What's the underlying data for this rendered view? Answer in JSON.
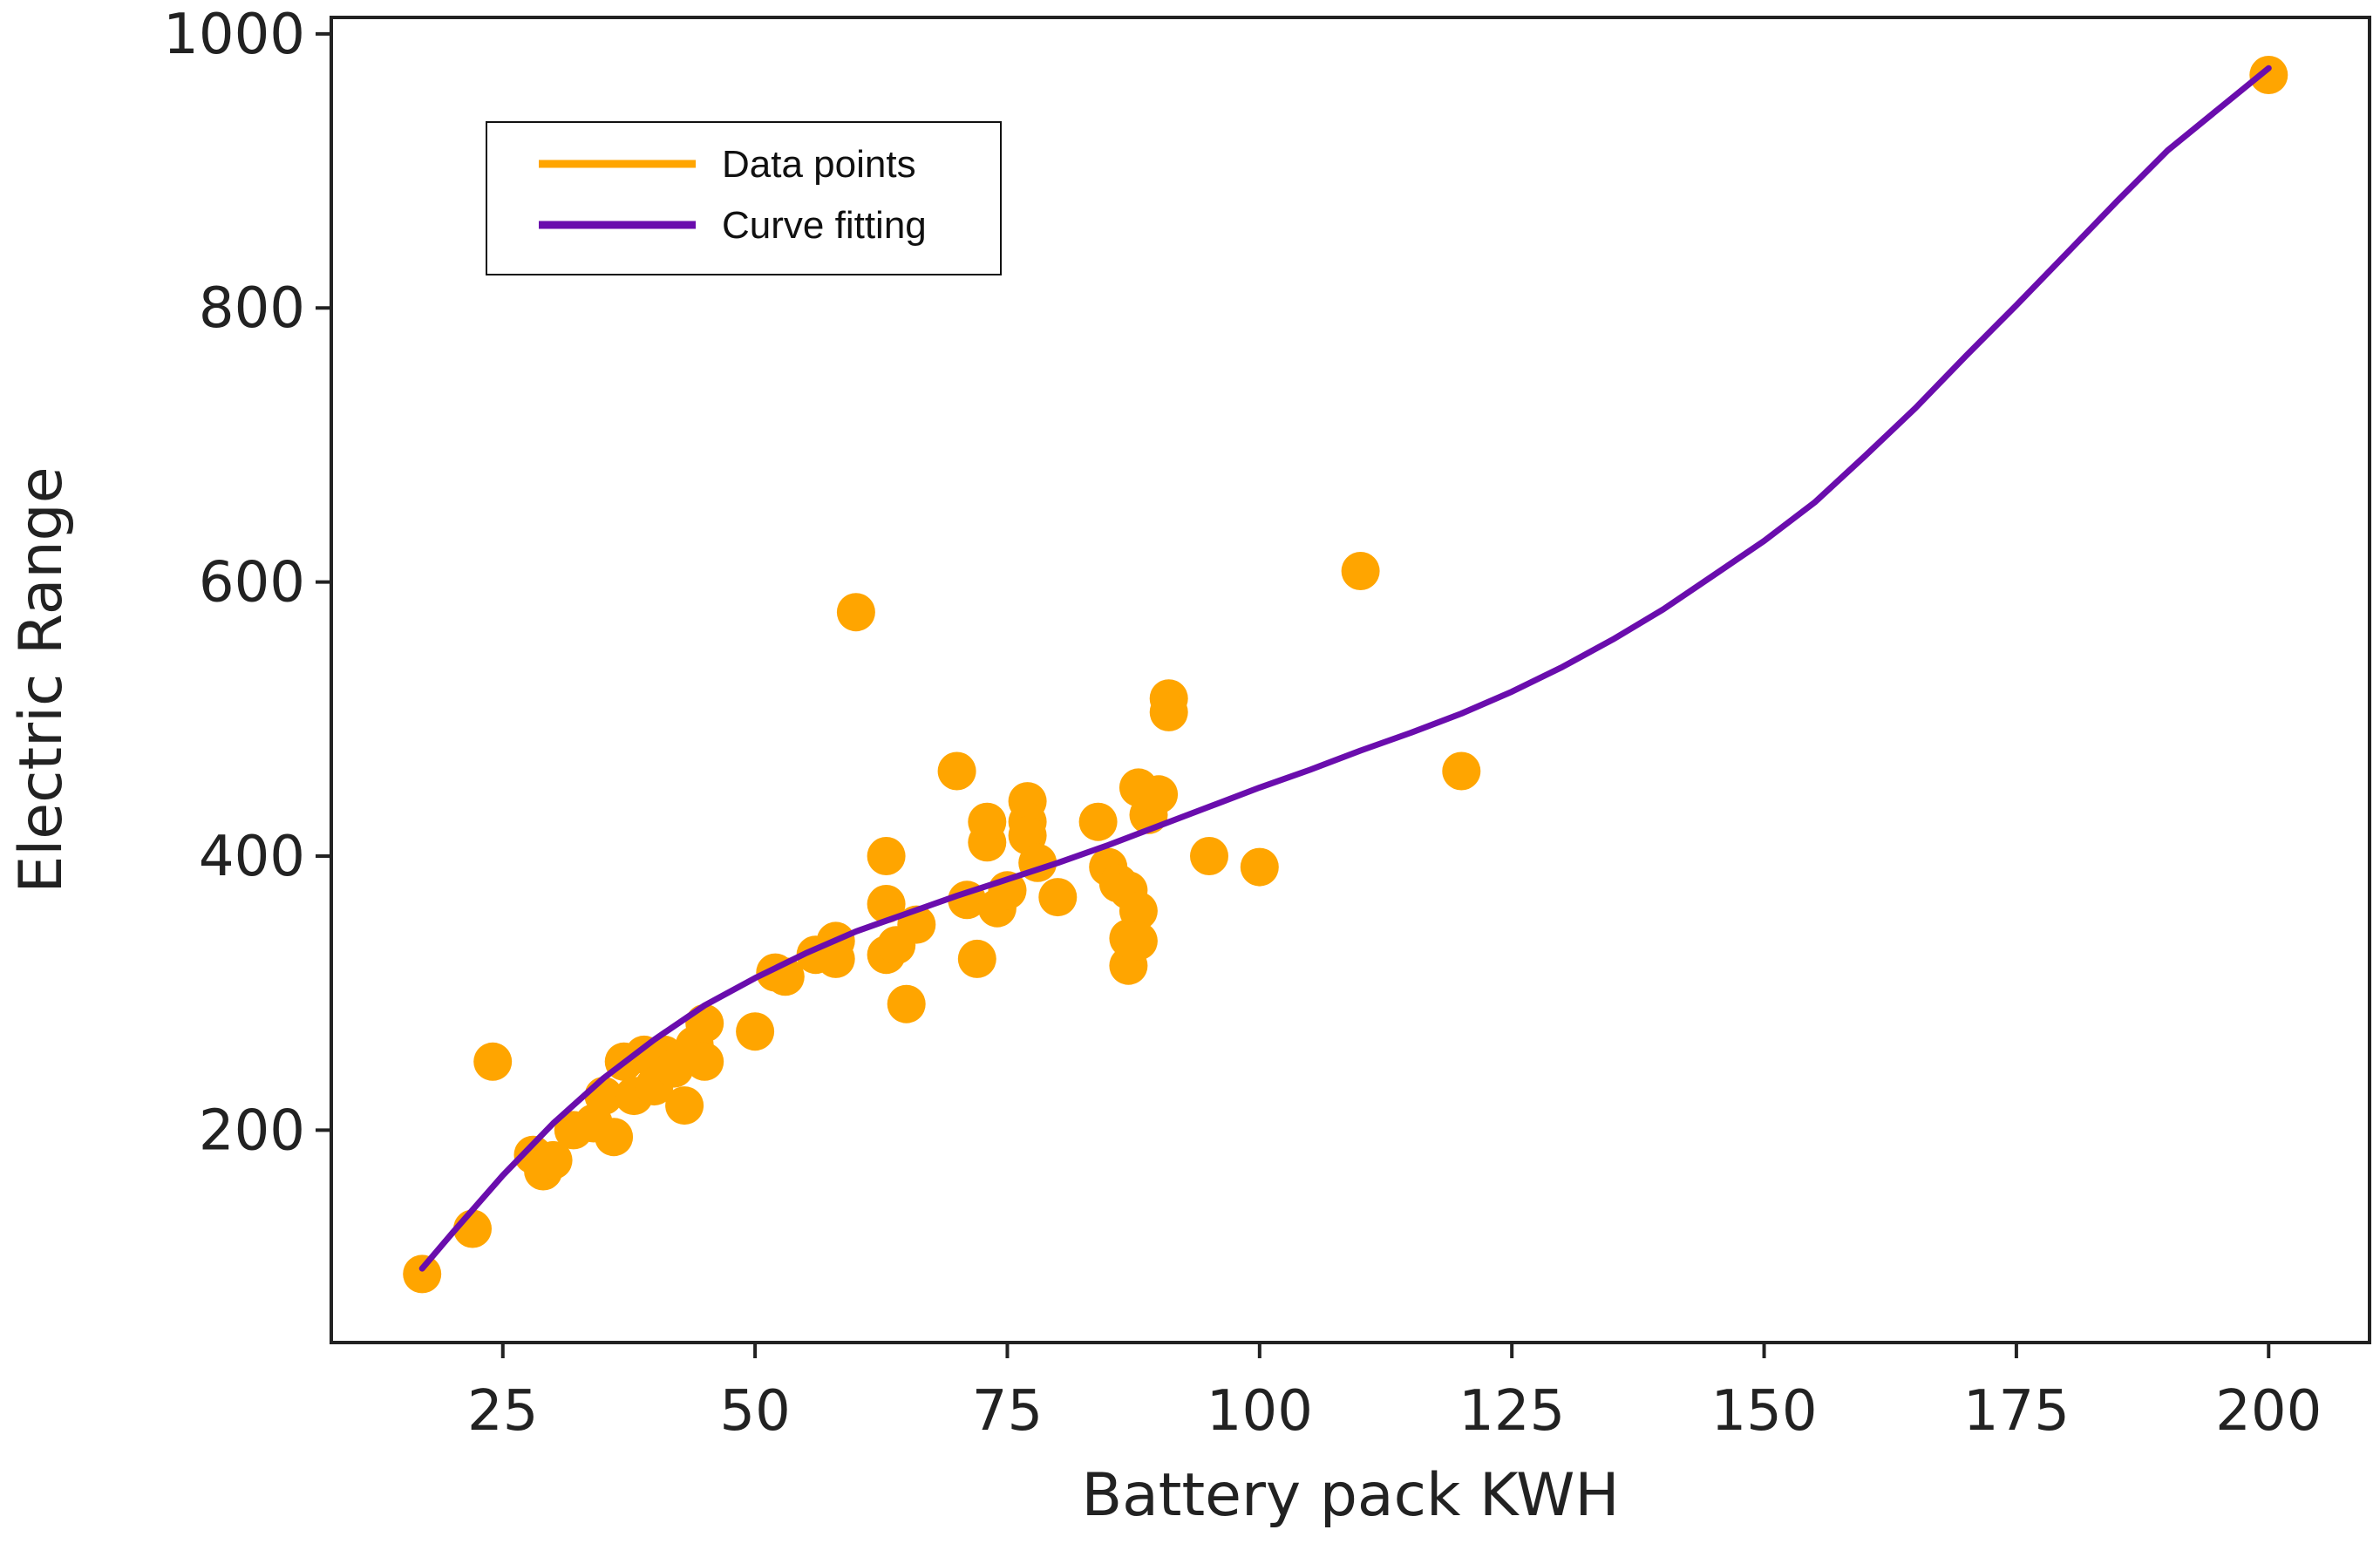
{
  "chart_data": {
    "type": "scatter",
    "title": "",
    "xlabel": "Battery pack KWH",
    "ylabel": "Electric Range",
    "xlim": [
      8,
      210
    ],
    "ylim": [
      45,
      1012
    ],
    "x_ticks": [
      25,
      50,
      75,
      100,
      125,
      150,
      175,
      200
    ],
    "y_ticks": [
      200,
      400,
      600,
      800,
      1000
    ],
    "grid": false,
    "legend_position": "top-left",
    "colors": {
      "points": "#FFA500",
      "curve": "#6A0DAD",
      "axes": "#222222"
    },
    "series": [
      {
        "name": "Data points",
        "kind": "scatter",
        "points": [
          [
            17,
            95
          ],
          [
            22,
            128
          ],
          [
            24,
            250
          ],
          [
            28,
            182
          ],
          [
            29,
            170
          ],
          [
            30,
            178
          ],
          [
            32,
            200
          ],
          [
            34,
            205
          ],
          [
            35,
            225
          ],
          [
            36,
            195
          ],
          [
            37,
            250
          ],
          [
            38,
            225
          ],
          [
            39,
            255
          ],
          [
            40,
            232
          ],
          [
            41,
            255
          ],
          [
            42,
            245
          ],
          [
            43,
            218
          ],
          [
            44,
            262
          ],
          [
            45,
            278
          ],
          [
            45,
            250
          ],
          [
            50,
            272
          ],
          [
            52,
            315
          ],
          [
            53,
            312
          ],
          [
            56,
            328
          ],
          [
            58,
            338
          ],
          [
            58,
            325
          ],
          [
            60,
            578
          ],
          [
            63,
            400
          ],
          [
            63,
            365
          ],
          [
            63,
            328
          ],
          [
            64,
            335
          ],
          [
            65,
            292
          ],
          [
            66,
            350
          ],
          [
            70,
            462
          ],
          [
            71,
            368
          ],
          [
            72,
            325
          ],
          [
            73,
            410
          ],
          [
            73,
            425
          ],
          [
            74,
            362
          ],
          [
            75,
            375
          ],
          [
            77,
            440
          ],
          [
            77,
            425
          ],
          [
            77,
            415
          ],
          [
            78,
            395
          ],
          [
            80,
            370
          ],
          [
            84,
            425
          ],
          [
            85,
            392
          ],
          [
            86,
            380
          ],
          [
            87,
            375
          ],
          [
            87,
            320
          ],
          [
            87,
            340
          ],
          [
            88,
            450
          ],
          [
            88,
            360
          ],
          [
            88,
            338
          ],
          [
            89,
            430
          ],
          [
            90,
            445
          ],
          [
            91,
            515
          ],
          [
            91,
            505
          ],
          [
            95,
            400
          ],
          [
            100,
            392
          ],
          [
            110,
            608
          ],
          [
            120,
            462
          ],
          [
            200,
            970
          ]
        ]
      },
      {
        "name": "Curve fitting",
        "kind": "line",
        "points": [
          [
            17,
            99
          ],
          [
            20,
            125
          ],
          [
            25,
            167
          ],
          [
            30,
            205
          ],
          [
            35,
            238
          ],
          [
            40,
            266
          ],
          [
            45,
            291
          ],
          [
            50,
            311
          ],
          [
            55,
            329
          ],
          [
            60,
            345
          ],
          [
            65,
            358
          ],
          [
            70,
            371
          ],
          [
            75,
            383
          ],
          [
            80,
            395
          ],
          [
            85,
            408
          ],
          [
            90,
            422
          ],
          [
            95,
            436
          ],
          [
            100,
            450
          ],
          [
            105,
            463
          ],
          [
            110,
            477
          ],
          [
            115,
            490
          ],
          [
            120,
            504
          ],
          [
            125,
            520
          ],
          [
            130,
            538
          ],
          [
            135,
            558
          ],
          [
            140,
            580
          ],
          [
            145,
            605
          ],
          [
            150,
            630
          ],
          [
            155,
            658
          ],
          [
            160,
            692
          ],
          [
            165,
            727
          ],
          [
            170,
            765
          ],
          [
            175,
            802
          ],
          [
            180,
            840
          ],
          [
            185,
            878
          ],
          [
            190,
            915
          ],
          [
            195,
            945
          ],
          [
            200,
            975
          ]
        ]
      }
    ]
  }
}
